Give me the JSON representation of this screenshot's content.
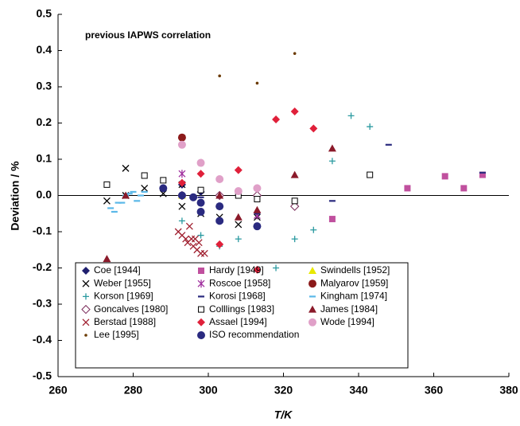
{
  "chart_data": {
    "type": "scatter",
    "annotation": "previous IAPWS correlation",
    "x_label": "T/K",
    "y_label": "Deviation / %",
    "xlim": [
      260,
      380
    ],
    "xticks": [
      260,
      280,
      300,
      320,
      340,
      360,
      380
    ],
    "ylim": [
      -0.5,
      0.5
    ],
    "yticks": [
      -0.5,
      -0.4,
      -0.3,
      -0.2,
      -0.1,
      {
        "value": 0,
        "label": "0.0"
      },
      0.1,
      0.2,
      0.3,
      0.4,
      0.5
    ],
    "legend": "lower left",
    "series": [
      {
        "name": "Coe [1944]",
        "color": "#1f1f6e",
        "marker": "diamond",
        "x": [
          293,
          298
        ],
        "values": [
          0.03,
          0.01
        ]
      },
      {
        "name": "Hardy [1949]",
        "color": "#c0509e",
        "marker": "square",
        "x": [
          333,
          353,
          363,
          368,
          373
        ],
        "values": [
          -0.065,
          0.02,
          0.053,
          0.02,
          0.057
        ]
      },
      {
        "name": "Swindells [1952]",
        "color": "#e8e800",
        "marker": "triangle",
        "x": [
          293
        ],
        "values": [
          0.0
        ]
      },
      {
        "name": "Weber [1955]",
        "color": "#000000",
        "marker": "x",
        "x": [
          273,
          278,
          278,
          283,
          288,
          293,
          293,
          298,
          303,
          308,
          313
        ],
        "values": [
          -0.015,
          0.075,
          0.0,
          0.02,
          0.005,
          -0.03,
          0.03,
          -0.05,
          -0.06,
          -0.08,
          -0.06
        ]
      },
      {
        "name": "Roscoe [1958]",
        "color": "#a0309e",
        "marker": "asterisk",
        "x": [
          293,
          313
        ],
        "values": [
          0.06,
          -0.055
        ]
      },
      {
        "name": "Malyarov [1959]",
        "color": "#8b1a1a",
        "marker": "circle",
        "x": [
          293
        ],
        "values": [
          0.16
        ]
      },
      {
        "name": "Korson [1969]",
        "color": "#2a9aa0",
        "marker": "plus",
        "x": [
          293,
          298,
          303,
          308,
          318,
          323,
          328,
          333,
          338,
          343
        ],
        "values": [
          -0.07,
          -0.11,
          -0.14,
          -0.12,
          -0.2,
          -0.12,
          -0.095,
          0.095,
          0.22,
          0.19
        ]
      },
      {
        "name": "Korosi [1968]",
        "color": "#2a2a7e",
        "marker": "dash",
        "x": [
          298,
          313,
          333,
          348,
          373
        ],
        "values": [
          -0.005,
          -0.05,
          -0.015,
          0.14,
          0.063
        ]
      },
      {
        "name": "Kingham [1974]",
        "color": "#5bb8e8",
        "marker": "dash",
        "x": [
          274,
          275,
          276,
          277,
          278,
          279,
          280,
          281,
          282,
          283
        ],
        "values": [
          -0.035,
          -0.045,
          -0.02,
          -0.02,
          0.0,
          0.005,
          0.01,
          -0.015,
          0.0,
          0.01
        ]
      },
      {
        "name": "Goncalves [1980]",
        "color": "#7a2a5a",
        "marker": "diamond-open",
        "x": [
          293,
          303,
          313,
          323
        ],
        "values": [
          0.0,
          0.0,
          0.0,
          -0.03
        ]
      },
      {
        "name": "Colllings [1983]",
        "color": "#000000",
        "marker": "square-open",
        "x": [
          273,
          283,
          288,
          298,
          308,
          313,
          323,
          343
        ],
        "values": [
          0.03,
          0.055,
          0.042,
          0.015,
          0.0,
          -0.01,
          -0.015,
          0.057
        ]
      },
      {
        "name": "James [1984]",
        "color": "#8b1a2a",
        "marker": "triangle",
        "x": [
          273,
          278,
          303,
          308,
          313,
          323,
          333
        ],
        "values": [
          -0.175,
          0.0,
          0.0,
          -0.06,
          -0.04,
          0.057,
          0.13
        ]
      },
      {
        "name": "Berstad [1988]",
        "color": "#a02030",
        "marker": "x",
        "x": [
          292,
          293,
          294,
          294.5,
          295,
          295.5,
          296,
          296.5,
          297,
          297.5,
          298,
          299
        ],
        "values": [
          -0.1,
          -0.11,
          -0.12,
          -0.13,
          -0.085,
          -0.12,
          -0.14,
          -0.12,
          -0.15,
          -0.13,
          -0.16,
          -0.16
        ]
      },
      {
        "name": "Assael [1994]",
        "color": "#e0203a",
        "marker": "diamond",
        "x": [
          293,
          298,
          303,
          308,
          313,
          318,
          323,
          328
        ],
        "values": [
          0.035,
          0.06,
          -0.135,
          0.07,
          -0.205,
          0.21,
          0.232,
          0.185
        ]
      },
      {
        "name": "Wode [1994]",
        "color": "#e0a0c8",
        "marker": "circle",
        "x": [
          293,
          298,
          303,
          308,
          313
        ],
        "values": [
          0.14,
          0.09,
          0.045,
          0.012,
          0.02
        ]
      },
      {
        "name": "Lee [1995]",
        "color": "#6b3a00",
        "marker": "dot",
        "x": [
          303,
          313,
          323
        ],
        "values": [
          0.33,
          0.31,
          0.392
        ]
      },
      {
        "name": "ISO recommendation",
        "color": "#2a2a80",
        "marker": "circle",
        "x": [
          288,
          293,
          296,
          298,
          298,
          303,
          303,
          313
        ],
        "values": [
          0.02,
          0.0,
          -0.005,
          -0.02,
          -0.045,
          -0.03,
          -0.07,
          -0.085
        ]
      }
    ]
  }
}
